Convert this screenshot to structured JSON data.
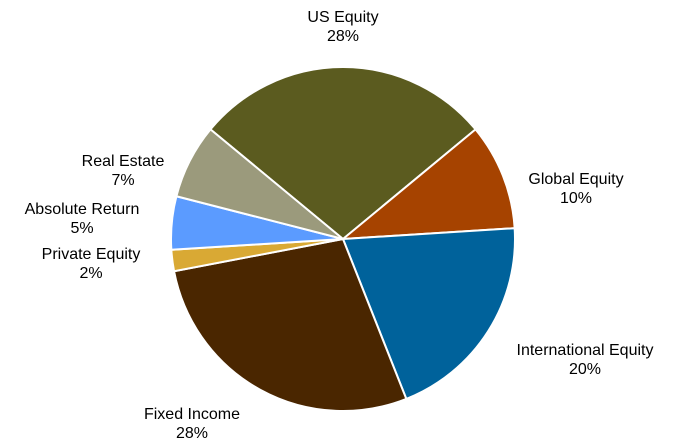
{
  "chart_data": {
    "type": "pie",
    "categories": [
      "US Equity",
      "Global Equity",
      "International Equity",
      "Fixed Income",
      "Private Equity",
      "Absolute Return",
      "Real Estate"
    ],
    "values": [
      28,
      10,
      20,
      28,
      2,
      5,
      7
    ],
    "value_labels": [
      "28%",
      "10%",
      "20%",
      "28%",
      "2%",
      "5%",
      "7%"
    ],
    "colors": [
      "#5b5b1f",
      "#a64300",
      "#00629b",
      "#4a2600",
      "#d9a934",
      "#5b9bff",
      "#9b9a7c"
    ]
  }
}
